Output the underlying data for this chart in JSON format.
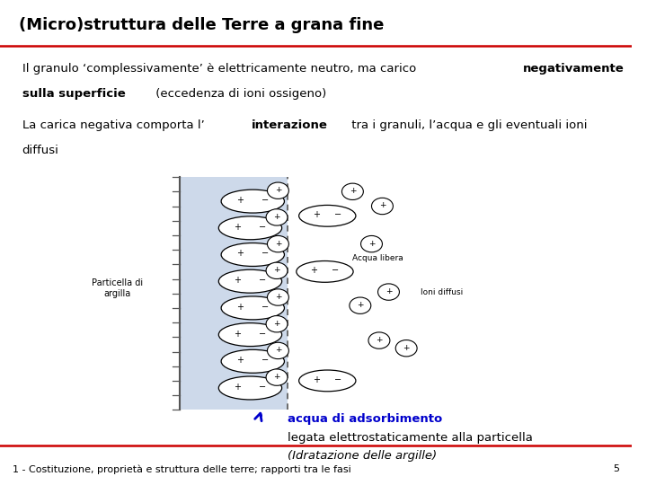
{
  "title": "(Micro)struttura delle Terre a grana fine",
  "bg_color": "#ffffff",
  "title_color": "#000000",
  "top_line_color": "#cc0000",
  "bottom_line_color": "#cc0000",
  "para1_plain": "Il granulo ‘complessivamente’ è elettricamente neutro, ma carico ",
  "para1_bold1": "negativamente",
  "para1_bold2": "sulla superficie",
  "para1_rest": " (eccedenza di ioni ossigeno)",
  "para2_plain": "La carica negativa comporta l’",
  "para2_bold": "interazione",
  "para2_rest": " tra i granuli, l’acqua e gli eventuali ioni",
  "para2_rest2": "diffusi",
  "caption_blue_bold": "acqua di adsorbimento",
  "caption_line2": "legata elettrostaticamente alla particella",
  "caption_italic": "(Idratazione delle argille)",
  "footer": "1 - Costituzione, proprietà e struttura delle terre; rapporti tra le fasi",
  "footer_page": "5",
  "label_argilla": "Particella di\nargilla",
  "label_acqua": "Acqua libera",
  "label_ioni": "Ioni diffusi",
  "font_size_title": 13,
  "font_size_body": 9.5,
  "font_size_footer": 8
}
